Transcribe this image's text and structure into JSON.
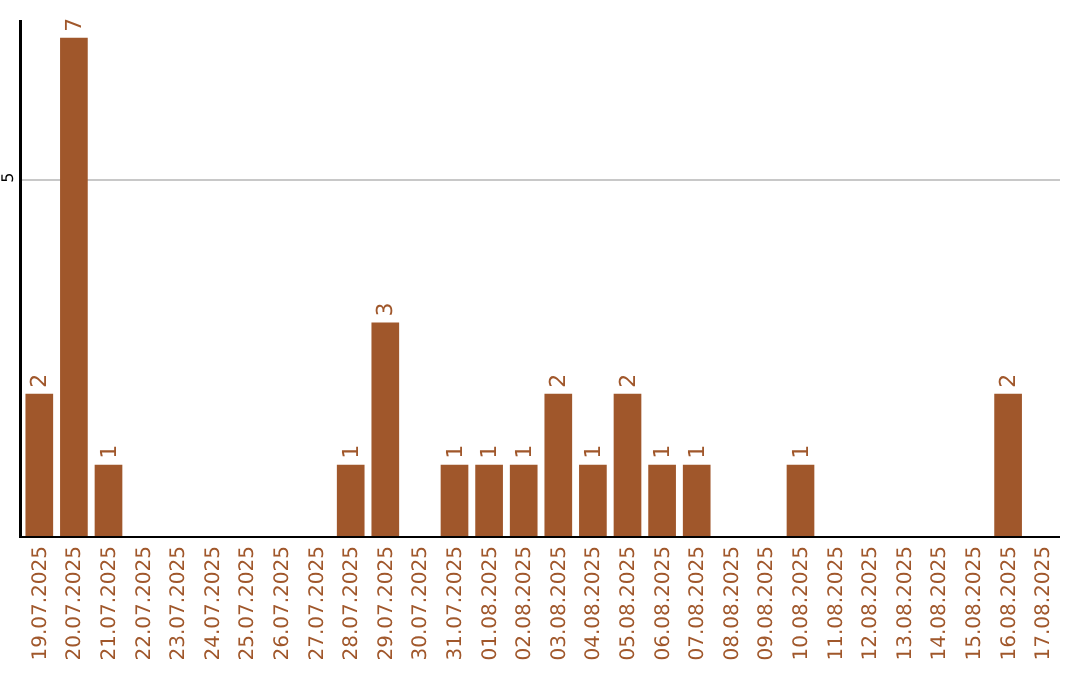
{
  "chart_data": {
    "type": "bar",
    "categories": [
      "19.07.2025",
      "20.07.2025",
      "21.07.2025",
      "22.07.2025",
      "23.07.2025",
      "24.07.2025",
      "25.07.2025",
      "26.07.2025",
      "27.07.2025",
      "28.07.2025",
      "29.07.2025",
      "30.07.2025",
      "31.07.2025",
      "01.08.2025",
      "02.08.2025",
      "03.08.2025",
      "04.08.2025",
      "05.08.2025",
      "06.08.2025",
      "07.08.2025",
      "08.08.2025",
      "09.08.2025",
      "10.08.2025",
      "11.08.2025",
      "12.08.2025",
      "13.08.2025",
      "14.08.2025",
      "15.08.2025",
      "16.08.2025",
      "17.08.2025"
    ],
    "values": [
      2,
      7,
      1,
      0,
      0,
      0,
      0,
      0,
      0,
      1,
      3,
      0,
      1,
      1,
      1,
      2,
      1,
      2,
      1,
      1,
      0,
      0,
      1,
      0,
      0,
      0,
      0,
      0,
      2,
      0
    ],
    "value_labels": [
      "2",
      "7",
      "1",
      null,
      null,
      null,
      null,
      null,
      null,
      "1",
      "3",
      null,
      "1",
      "1",
      "1",
      "2",
      "1",
      "2",
      "1",
      "1",
      null,
      null,
      "1",
      null,
      null,
      null,
      null,
      null,
      "2",
      null
    ],
    "color": "#a0572b",
    "ylim": [
      0,
      7.25
    ],
    "yticks": [
      5
    ],
    "grid": "y"
  }
}
